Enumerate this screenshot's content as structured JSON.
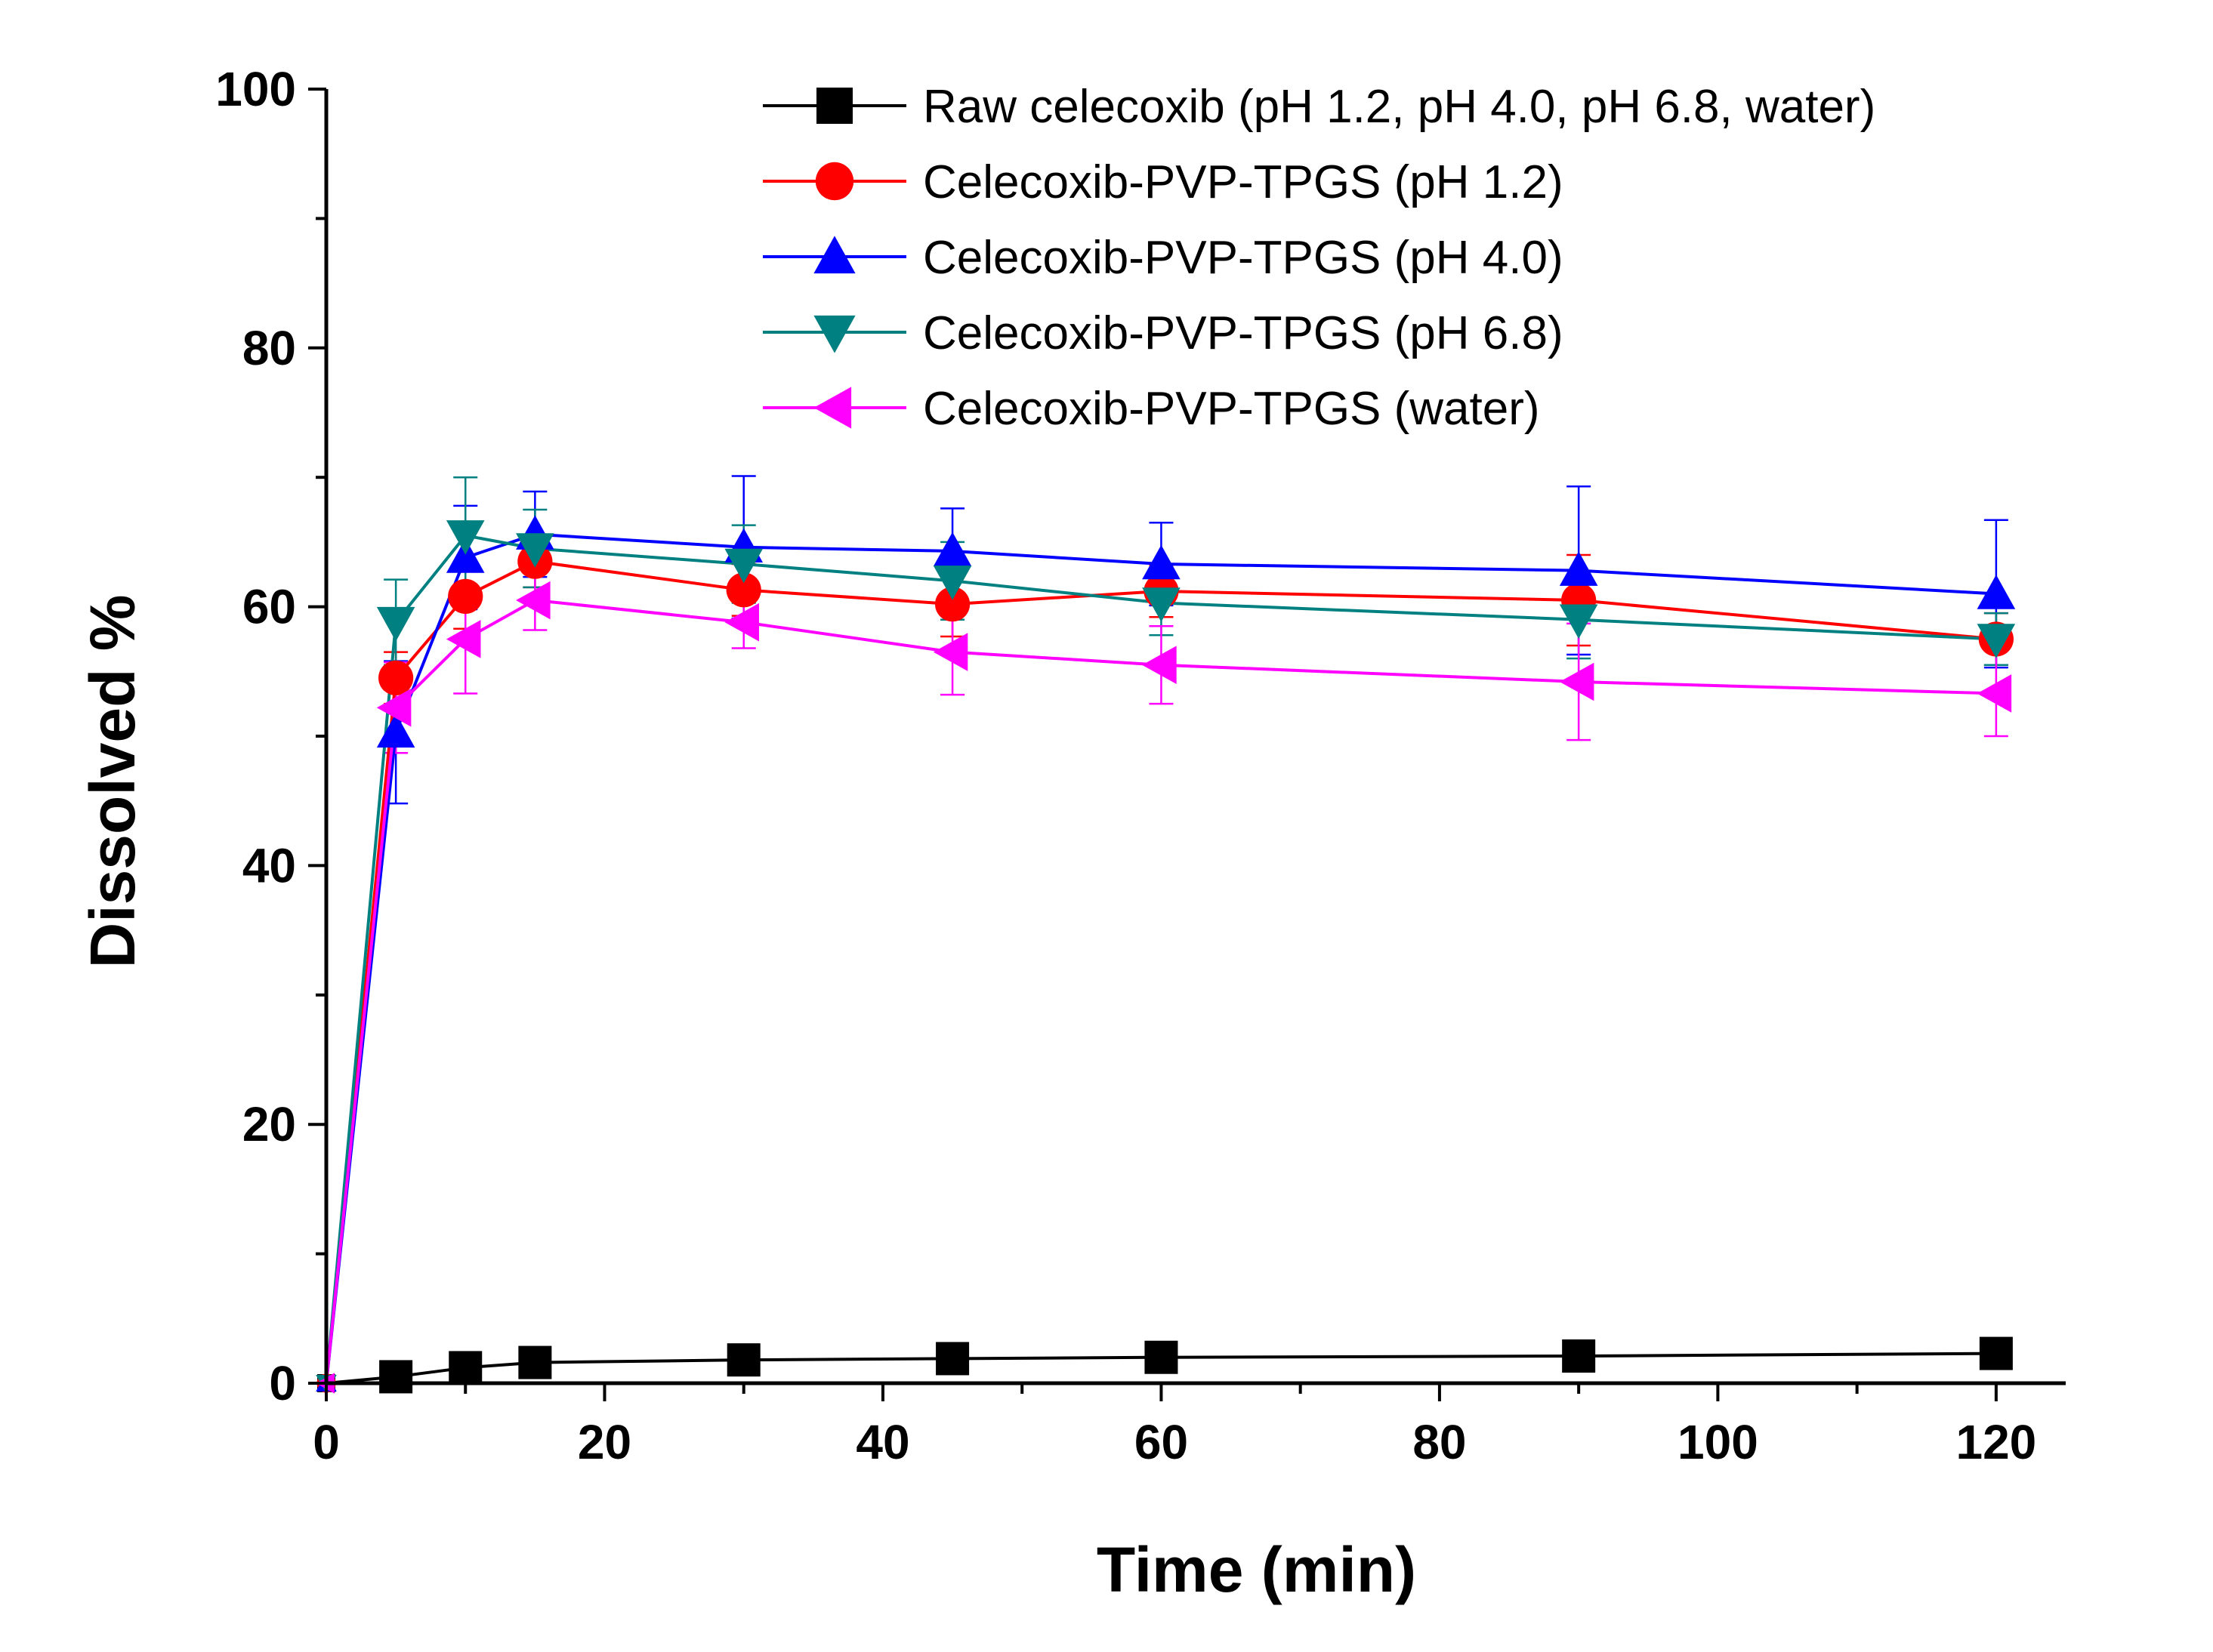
{
  "chart_data": {
    "type": "line",
    "title": "",
    "xlabel": "Time (min)",
    "ylabel": "Dissolved %",
    "xlim": [
      0,
      125
    ],
    "ylim": [
      0,
      100
    ],
    "xticks": [
      0,
      20,
      40,
      60,
      80,
      100,
      120
    ],
    "yticks": [
      0,
      20,
      40,
      60,
      80,
      100
    ],
    "x": [
      0,
      5,
      10,
      15,
      30,
      45,
      60,
      90,
      120
    ],
    "grid": false,
    "legend_position": "top-right",
    "series": [
      {
        "name": "Raw celecoxib (pH 1.2, pH 4.0, pH 6.8, water)",
        "color": "#000000",
        "marker": "square",
        "values": [
          0,
          0.5,
          1.2,
          1.6,
          1.8,
          1.9,
          2.0,
          2.1,
          2.3
        ],
        "errors": [
          0,
          0,
          0,
          0,
          0,
          0,
          0,
          0,
          0
        ]
      },
      {
        "name": "Celecoxib-PVP-TPGS (pH 1.2)",
        "color": "#ff0000",
        "marker": "circle",
        "values": [
          0,
          54.5,
          60.8,
          63.5,
          61.3,
          60.2,
          61.2,
          60.5,
          57.5
        ],
        "errors": [
          0,
          2.0,
          2.5,
          2.0,
          2.0,
          2.5,
          2.0,
          3.5,
          2.0
        ]
      },
      {
        "name": "Celecoxib-PVP-TPGS (pH 4.0)",
        "color": "#0000ff",
        "marker": "triangle-up",
        "values": [
          0,
          50.3,
          63.8,
          65.6,
          64.6,
          64.3,
          63.3,
          62.8,
          61.0
        ],
        "errors": [
          0,
          5.5,
          4.0,
          3.3,
          5.5,
          3.3,
          3.2,
          6.5,
          5.7
        ]
      },
      {
        "name": "Celecoxib-PVP-TPGS (pH 6.8)",
        "color": "#008080",
        "marker": "triangle-down",
        "values": [
          0,
          58.8,
          65.5,
          64.5,
          63.3,
          62.0,
          60.3,
          59.0,
          57.5
        ],
        "errors": [
          0,
          3.3,
          4.5,
          3.0,
          3.0,
          3.0,
          2.5,
          3.0,
          2.0
        ]
      },
      {
        "name": "Celecoxib-PVP-TPGS (water)",
        "color": "#ff00ff",
        "marker": "triangle-left",
        "values": [
          0,
          52.2,
          57.5,
          60.5,
          58.8,
          56.5,
          55.5,
          54.2,
          53.3
        ],
        "errors": [
          0,
          3.5,
          4.2,
          2.3,
          2.0,
          3.3,
          3.0,
          4.5,
          3.3
        ]
      }
    ]
  }
}
